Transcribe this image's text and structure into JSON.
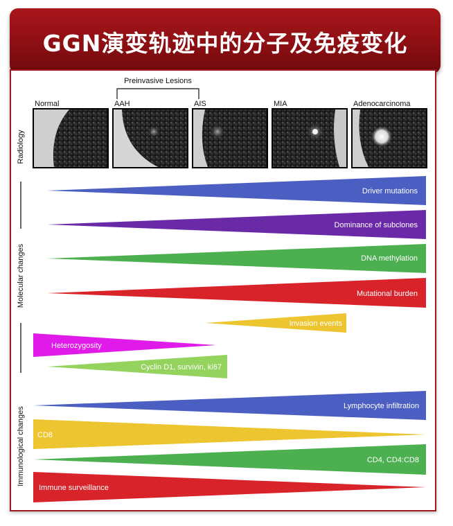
{
  "header": {
    "title": "GGN演变轨迹中的分子及免疫变化"
  },
  "group_label": "Preinvasive Lesions",
  "stages": [
    {
      "key": "normal",
      "label": "Normal"
    },
    {
      "key": "aah",
      "label": "AAH"
    },
    {
      "key": "ais",
      "label": "AIS"
    },
    {
      "key": "mia",
      "label": "MIA"
    },
    {
      "key": "adeno",
      "label": "Adenocarcinoma"
    }
  ],
  "side_labels": {
    "radiology": "Radiology",
    "molecular": "Molecular changes",
    "immunological": "Immunological changes"
  },
  "wedges": [
    {
      "label": "Driver mutations",
      "color": "#4a5fc1",
      "direction": "increasing"
    },
    {
      "label": "Dominance of subclones",
      "color": "#6a2aa8",
      "direction": "increasing"
    },
    {
      "label": "DNA methylation",
      "color": "#4caf50",
      "direction": "increasing"
    },
    {
      "label": "Mutational burden",
      "color": "#d9232a",
      "direction": "increasing"
    },
    {
      "label": "Invasion events",
      "color": "#ecc531",
      "direction": "increasing"
    },
    {
      "label": "Heterozygosity",
      "color": "#e01ae8",
      "direction": "decreasing"
    },
    {
      "label": "Cyclin D1, survivin, ki67",
      "color": "#95d35f",
      "direction": "increasing"
    },
    {
      "label": "Lymphocyte infiltration",
      "color": "#4a5fc1",
      "direction": "increasing"
    },
    {
      "label": "CD8",
      "color": "#ecc531",
      "direction": "decreasing"
    },
    {
      "label": "CD4, CD4:CD8",
      "color": "#4caf50",
      "direction": "increasing"
    },
    {
      "label": "Immune surveillance",
      "color": "#d9232a",
      "direction": "decreasing"
    }
  ]
}
